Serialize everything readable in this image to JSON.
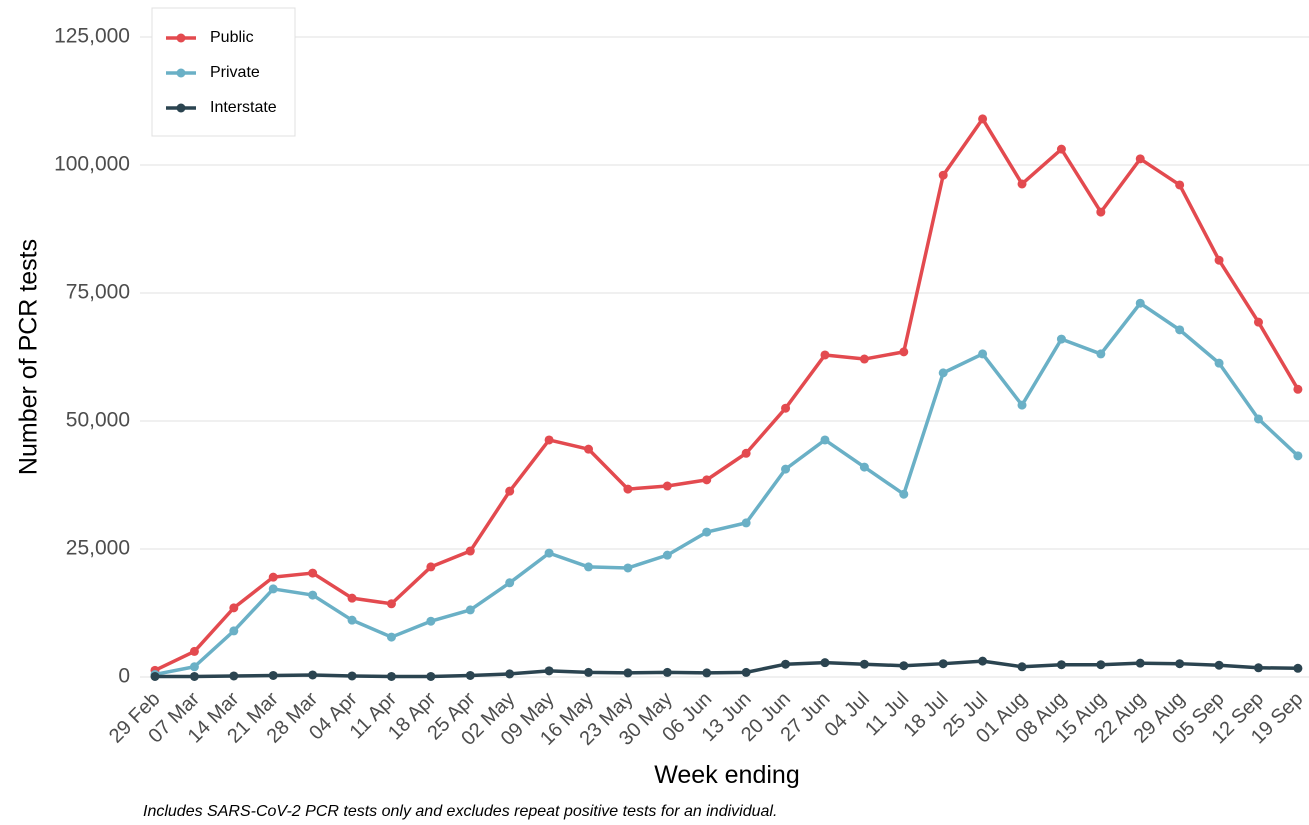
{
  "chart_data": {
    "type": "line",
    "x_label": "Week ending",
    "y_label": "Number of PCR tests",
    "note": "Includes SARS-CoV-2 PCR tests only and excludes repeat positive tests for an individual.",
    "categories": [
      "29 Feb",
      "07 Mar",
      "14 Mar",
      "21 Mar",
      "28 Mar",
      "04 Apr",
      "11 Apr",
      "18 Apr",
      "25 Apr",
      "02 May",
      "09 May",
      "16 May",
      "23 May",
      "30 May",
      "06 Jun",
      "13 Jun",
      "20 Jun",
      "27 Jun",
      "04 Jul",
      "11 Jul",
      "18 Jul",
      "25 Jul",
      "01 Aug",
      "08 Aug",
      "15 Aug",
      "22 Aug",
      "29 Aug",
      "05 Sep",
      "12 Sep",
      "19 Sep"
    ],
    "series": [
      {
        "name": "Public",
        "color": "#e34a4f",
        "values": [
          1300,
          5000,
          13500,
          19500,
          20300,
          15400,
          14300,
          21500,
          24600,
          36300,
          46300,
          44500,
          36700,
          37300,
          38500,
          43700,
          52500,
          62900,
          62100,
          63500,
          98000,
          109000,
          96300,
          103100,
          90800,
          101200,
          96100,
          81400,
          69300,
          56200
        ]
      },
      {
        "name": "Private",
        "color": "#6ab0c6",
        "values": [
          500,
          2000,
          9000,
          17200,
          16000,
          11100,
          7800,
          10900,
          13100,
          18400,
          24200,
          21500,
          21300,
          23800,
          28300,
          30100,
          40600,
          46300,
          41000,
          35700,
          59400,
          63100,
          53100,
          66000,
          63100,
          73000,
          67800,
          61300,
          50400,
          43200
        ]
      },
      {
        "name": "Interstate",
        "color": "#2b4450",
        "values": [
          100,
          100,
          200,
          300,
          400,
          200,
          100,
          100,
          300,
          600,
          1200,
          900,
          800,
          900,
          800,
          900,
          2500,
          2800,
          2500,
          2200,
          2600,
          3100,
          2000,
          2400,
          2400,
          2700,
          2600,
          2300,
          1800,
          1700
        ]
      }
    ],
    "ylim": [
      0,
      125000
    ],
    "yticks": [
      0,
      {
        "value": 25000,
        "label": "25,000"
      },
      {
        "value": 50000,
        "label": "50,000"
      },
      {
        "value": 75000,
        "label": "75,000"
      },
      {
        "value": 100000,
        "label": "100,000"
      },
      {
        "value": 125000,
        "label": "125,000"
      }
    ],
    "grid": true,
    "legend": "top-left"
  }
}
